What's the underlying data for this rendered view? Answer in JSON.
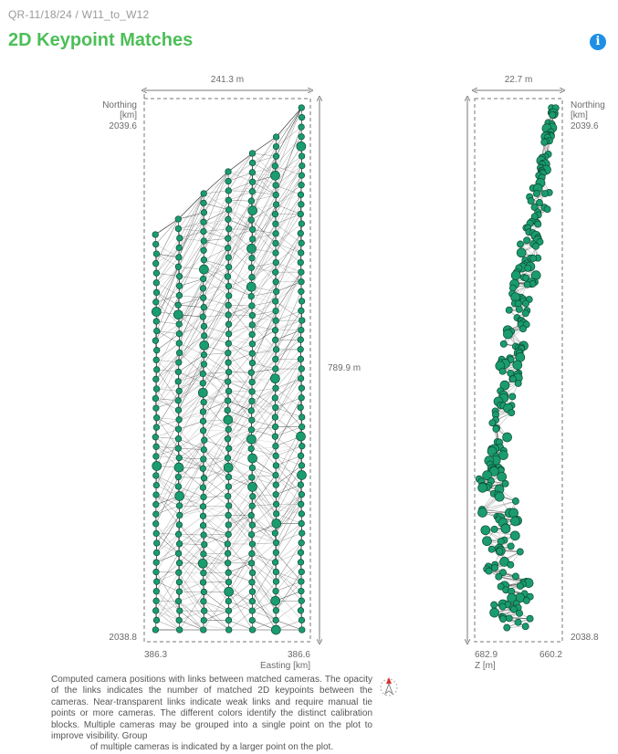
{
  "header": {
    "breadcrumb": "QR-11/18/24 / W11_to_W12",
    "title": "2D Keypoint Matches",
    "info_icon": "info-icon"
  },
  "plots": {
    "left": {
      "width_label": "241.3 m",
      "height_label": "789.9 m",
      "y_axis_label_line1": "Northing",
      "y_axis_label_line2": "[km]",
      "y_top": "2039.6",
      "y_bottom": "2038.8",
      "x_min": "386.3",
      "x_max": "386.6",
      "x_axis_label": "Easting [km]"
    },
    "right": {
      "width_label": "22.7 m",
      "y_axis_label_line1": "Northing",
      "y_axis_label_line2": "[km]",
      "y_top": "2039.6",
      "y_bottom": "2038.8",
      "x_min": "682.9",
      "x_max": "660.2",
      "x_axis_label": "Z [m]"
    }
  },
  "colors": {
    "camera_fill": "#1a9c6e",
    "camera_stroke": "#0d4d36",
    "link": "#333333",
    "title": "#4cbf58",
    "info": "#1f8fe5"
  },
  "caption": {
    "text": "Computed camera positions with links between matched cameras. The opacity of the links indicates the number of matched 2D keypoints between the cameras. Near-transparent links indicate weak links and require manual tie points or more cameras. The different colors identify the distinct calibration blocks. Multiple cameras may be grouped into a single point on the plot to improve visibility. Group",
    "last_line": "of multiple cameras is indicated by a larger point on the plot."
  },
  "compass_icon": "north-arrow-icon"
}
